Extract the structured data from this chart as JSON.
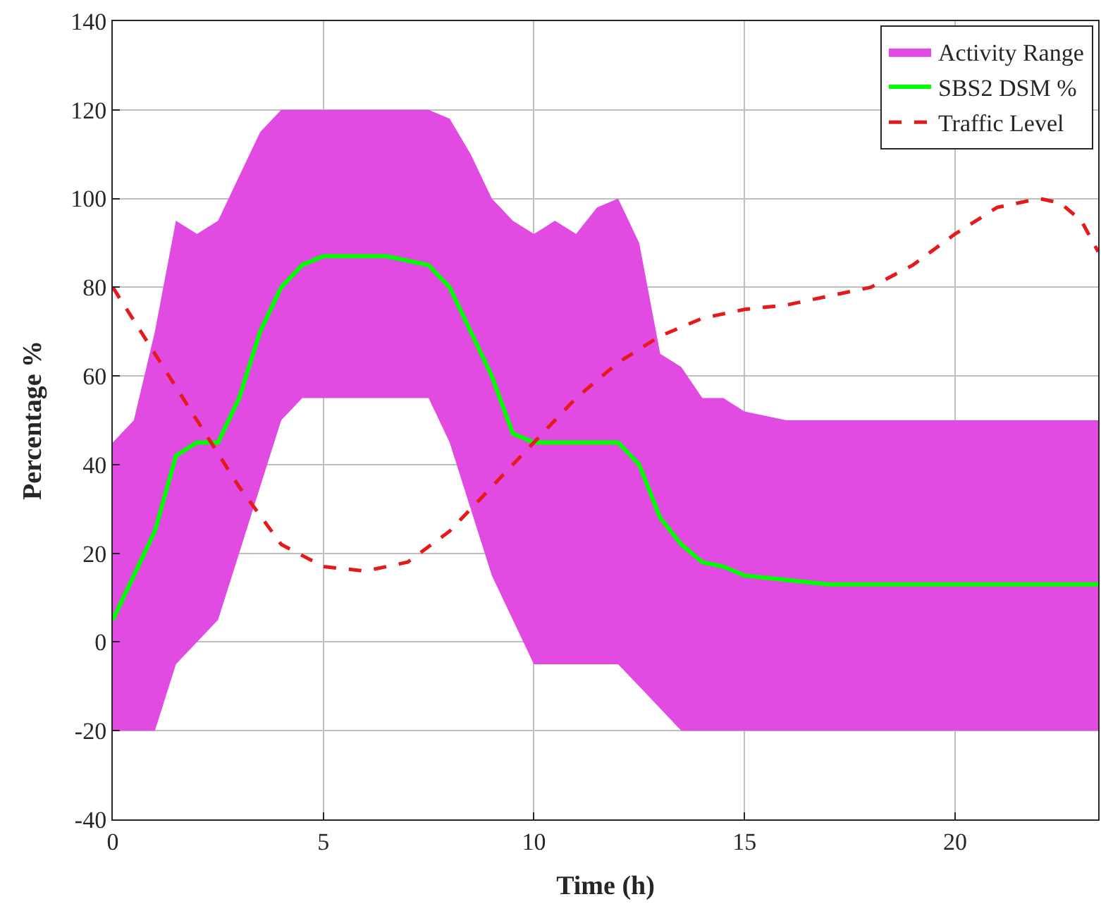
{
  "chart_data": {
    "type": "line",
    "xlabel": "Time (h)",
    "ylabel": "Percentage %",
    "x": [
      0,
      0.5,
      1,
      1.5,
      2,
      2.5,
      3,
      3.5,
      4,
      4.5,
      5,
      5.5,
      6,
      6.5,
      7,
      7.5,
      8,
      8.5,
      9,
      9.5,
      10,
      10.5,
      11,
      11.5,
      12,
      12.5,
      13,
      13.5,
      14,
      14.5,
      15,
      16,
      17,
      18,
      19,
      20,
      21,
      22,
      22.5,
      23,
      23.4
    ],
    "series": [
      {
        "name": "Activity Range",
        "type": "line",
        "color": "#e14be1",
        "values": [
          null,
          null,
          null,
          null,
          null,
          null,
          null,
          null,
          null,
          null,
          null,
          null,
          null,
          null,
          null,
          null,
          null,
          null,
          null,
          null,
          null,
          null,
          null,
          null,
          null,
          null,
          null,
          null,
          null,
          null,
          null,
          null,
          null,
          null,
          null,
          null,
          null,
          null,
          null,
          null,
          null
        ],
        "upper": [
          45,
          50,
          70,
          95,
          92,
          95,
          105,
          115,
          120,
          120,
          120,
          120,
          120,
          120,
          120,
          120,
          118,
          110,
          100,
          95,
          92,
          95,
          92,
          98,
          100,
          90,
          65,
          62,
          55,
          55,
          52,
          50,
          50,
          50,
          50,
          50,
          50,
          50,
          50,
          50,
          50
        ],
        "lower": [
          -20,
          -20,
          -20,
          -5,
          0,
          5,
          20,
          35,
          50,
          55,
          55,
          55,
          55,
          55,
          55,
          55,
          45,
          30,
          15,
          5,
          -5,
          -5,
          -5,
          -5,
          -5,
          -10,
          -15,
          -20,
          -20,
          -20,
          -20,
          -20,
          -20,
          -20,
          -20,
          -20,
          -20,
          -20,
          -20,
          -20,
          -20
        ]
      },
      {
        "name": "SBS2 DSM %",
        "color": "#00ff00",
        "line_style": "solid",
        "values": [
          5,
          15,
          25,
          42,
          45,
          45,
          55,
          70,
          80,
          85,
          87,
          87,
          87,
          87,
          86,
          85,
          80,
          70,
          60,
          47,
          45,
          45,
          45,
          45,
          45,
          40,
          28,
          22,
          18,
          17,
          15,
          14,
          13,
          13,
          13,
          13,
          13,
          13,
          13,
          13,
          13
        ]
      },
      {
        "name": "Traffic Level",
        "type": "line",
        "color": "#e41a1c",
        "line_style": "dashed",
        "x": [
          0,
          1,
          2,
          3,
          4,
          5,
          6,
          7,
          8,
          9,
          10,
          11,
          12,
          13,
          14,
          15,
          16,
          17,
          18,
          19,
          20,
          21,
          22,
          22.5,
          23,
          23.4
        ],
        "values": [
          80,
          65,
          50,
          35,
          22,
          17,
          16,
          18,
          25,
          35,
          45,
          55,
          63,
          69,
          73,
          75,
          76,
          78,
          80,
          85,
          92,
          98,
          100,
          99,
          95,
          88
        ]
      }
    ],
    "xlim": [
      0,
      23.4
    ],
    "xticks": [
      0,
      5,
      10,
      15,
      20
    ],
    "ylim": [
      -40,
      140
    ],
    "yticks": [
      -40,
      -20,
      0,
      20,
      40,
      60,
      80,
      100,
      120,
      140
    ],
    "grid": true,
    "legend": "top right"
  }
}
